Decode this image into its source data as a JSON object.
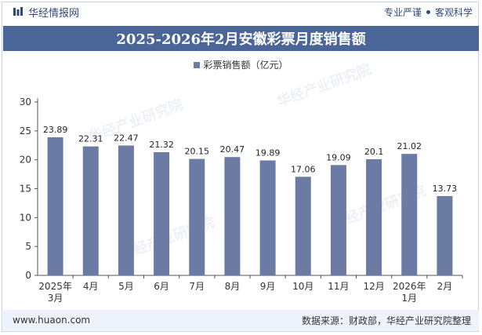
{
  "header": {
    "brand": "华经情报网",
    "slogan_left": "专业严谨",
    "slogan_right": "客观科学"
  },
  "watermark": "华经产业研究院",
  "colors": {
    "bar": "#6b7ba4",
    "title_bg": "#4a6597",
    "footer_bg": "#eef2fa"
  },
  "chart_data": {
    "type": "bar",
    "title": "2025-2026年2月安徽彩票月度销售额",
    "categories": [
      "2025年\n3月",
      "4月",
      "5月",
      "6月",
      "7月",
      "8月",
      "9月",
      "10月",
      "11月",
      "12月",
      "2026年\n1月",
      "2月"
    ],
    "series": [
      {
        "name": "彩票销售额（亿元）",
        "values": [
          23.89,
          22.31,
          22.47,
          21.32,
          20.15,
          20.47,
          19.89,
          17.06,
          19.09,
          20.1,
          21.02,
          13.73
        ]
      }
    ],
    "yticks": [
      0,
      5,
      10,
      15,
      20,
      25,
      30
    ],
    "ylim": [
      0,
      30
    ],
    "grid": false,
    "legend_position": "top-center"
  },
  "footer": {
    "website": "www.huaon.com",
    "source": "数据来源：财政部，华经产业研究院整理"
  }
}
